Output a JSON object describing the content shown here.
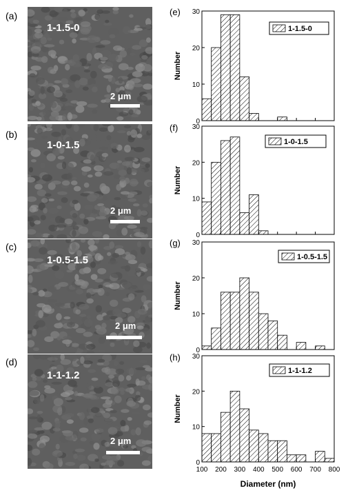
{
  "sem_panels": [
    {
      "letter": "(a)",
      "sample": "1-1.5-0",
      "scale": "2 μm"
    },
    {
      "letter": "(b)",
      "sample": "1-0-1.5",
      "scale": "2 μm"
    },
    {
      "letter": "(c)",
      "sample": "1-0.5-1.5",
      "scale": "2 μm"
    },
    {
      "letter": "(d)",
      "sample": "1-1-1.2",
      "scale": "2 μm"
    }
  ],
  "chart_data": [
    {
      "type": "bar",
      "panel": "(e)",
      "legend": "1-1.5-0",
      "bin_width": 50,
      "x": [
        100,
        150,
        200,
        250,
        300,
        350,
        400,
        450,
        500,
        550,
        600,
        650,
        700,
        750
      ],
      "values": [
        6,
        20,
        29,
        29,
        12,
        2,
        0,
        0,
        1,
        0,
        0,
        0,
        0,
        0
      ],
      "ylim": [
        0,
        30
      ],
      "yticks": [
        0,
        10,
        20,
        30
      ],
      "ylabel": "Number"
    },
    {
      "type": "bar",
      "panel": "(f)",
      "legend": "1-0-1.5",
      "bin_width": 50,
      "x": [
        100,
        150,
        200,
        250,
        300,
        350,
        400,
        450,
        500,
        550,
        600,
        650,
        700,
        750
      ],
      "values": [
        9,
        20,
        26,
        27,
        6,
        11,
        1,
        0,
        0,
        0,
        0,
        0,
        0,
        0
      ],
      "ylim": [
        0,
        30
      ],
      "yticks": [
        0,
        10,
        20,
        30
      ],
      "ylabel": "Number"
    },
    {
      "type": "bar",
      "panel": "(g)",
      "legend": "1-0.5-1.5",
      "bin_width": 50,
      "x": [
        100,
        150,
        200,
        250,
        300,
        350,
        400,
        450,
        500,
        550,
        600,
        650,
        700,
        750
      ],
      "values": [
        1,
        6,
        16,
        16,
        20,
        16,
        10,
        8,
        4,
        0,
        2,
        0,
        1,
        0
      ],
      "ylim": [
        0,
        30
      ],
      "yticks": [
        0,
        10,
        20,
        30
      ],
      "ylabel": "Number"
    },
    {
      "type": "bar",
      "panel": "(h)",
      "legend": "1-1-1.2",
      "bin_width": 50,
      "x": [
        100,
        150,
        200,
        250,
        300,
        350,
        400,
        450,
        500,
        550,
        600,
        650,
        700,
        750
      ],
      "values": [
        8,
        8,
        14,
        20,
        15,
        9,
        8,
        6,
        6,
        2,
        2,
        0,
        3,
        1
      ],
      "ylim": [
        0,
        30
      ],
      "yticks": [
        0,
        10,
        20,
        30
      ],
      "ylabel": "Number",
      "xlabel": "Diameter (nm)",
      "xticks": [
        100,
        200,
        300,
        400,
        500,
        600,
        700,
        800
      ]
    }
  ]
}
